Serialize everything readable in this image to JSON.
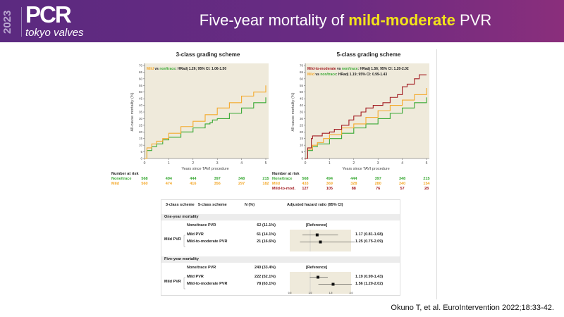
{
  "header": {
    "logo_year": "2023",
    "logo_main": "PCR",
    "logo_sub": "tokyo valves",
    "title_pre": "Five-year mortality of ",
    "title_highlight": "mild-moderate",
    "title_post": " PVR",
    "brand_color": "#5b2a80",
    "highlight_color": "#f3e31a"
  },
  "colors": {
    "none_trace": "#3aa935",
    "mild": "#f4a92c",
    "mild_to_mod": "#a31c22",
    "plot_bg": "#efeadb"
  },
  "chart_data": [
    {
      "type": "line",
      "title": "3-class grading scheme",
      "xlabel": "Years since TAVI procedure",
      "ylabel": "All-cause mortality (%)",
      "xlim": [
        0,
        5
      ],
      "ylim": [
        0,
        70
      ],
      "xticks": [
        0,
        1,
        2,
        3,
        4,
        5
      ],
      "yticks": [
        0,
        5,
        10,
        15,
        20,
        25,
        30,
        35,
        40,
        45,
        50,
        55,
        60,
        65,
        70
      ],
      "annotation": {
        "a": "Mild",
        "vs": " vs ",
        "b": "non/trace",
        "hr": ": HRadj 1.26; 95% CI: 1.06-1.50"
      },
      "series": [
        {
          "name": "None/trace",
          "color": "#3aa935",
          "x": [
            0,
            0.1,
            0.3,
            0.5,
            0.75,
            1,
            1.5,
            2,
            2.5,
            2.7,
            2.8,
            3,
            3.5,
            4,
            4.5,
            5
          ],
          "y": [
            0,
            6,
            9,
            11,
            14,
            16,
            20,
            23,
            26,
            27,
            29,
            30,
            34,
            38,
            42,
            46
          ]
        },
        {
          "name": "Mild",
          "color": "#f4a92c",
          "x": [
            0,
            0.1,
            0.3,
            0.5,
            0.75,
            1,
            1.5,
            2,
            2.5,
            3,
            3.5,
            4,
            4.5,
            5
          ],
          "y": [
            0,
            8,
            11,
            13,
            15,
            19,
            24,
            28,
            33,
            38,
            42,
            47,
            50,
            55
          ]
        }
      ],
      "risk_table": {
        "label": "Number at risk",
        "rows": [
          {
            "name": "None/trace",
            "values": [
              568,
              494,
              444,
              397,
              348,
              215
            ]
          },
          {
            "name": "Mild",
            "values": [
              560,
              474,
              416,
              356,
              297,
              182
            ]
          }
        ]
      }
    },
    {
      "type": "line",
      "title": "5-class grading scheme",
      "xlabel": "Years since TAVI procedure",
      "ylabel": "All-cause mortality (%)",
      "xlim": [
        0,
        5
      ],
      "ylim": [
        0,
        70
      ],
      "xticks": [
        0,
        1,
        2,
        3,
        4,
        5
      ],
      "yticks": [
        0,
        5,
        10,
        15,
        20,
        25,
        30,
        35,
        40,
        45,
        50,
        55,
        60,
        65,
        70
      ],
      "annotations": [
        {
          "a": "Mild-to-moderate",
          "vs": " vs ",
          "b": "non/trace",
          "hr": ": HRadj 1.56; 95% CI: 1.20-2.02"
        },
        {
          "a": "Mild",
          "vs": " vs ",
          "b": "non/trace",
          "hr": ": HRadj 1.19; 95% CI: 0.99-1.43"
        }
      ],
      "series": [
        {
          "name": "None/trace",
          "color": "#3aa935",
          "x": [
            0,
            0.1,
            0.3,
            0.5,
            1,
            1.5,
            2,
            2.5,
            3,
            3.5,
            4,
            4.5,
            5
          ],
          "y": [
            0,
            6,
            9,
            11,
            15,
            19,
            23,
            26,
            30,
            34,
            38,
            42,
            46
          ]
        },
        {
          "name": "Mild",
          "color": "#f4a92c",
          "x": [
            0,
            0.1,
            0.3,
            0.5,
            0.75,
            1,
            1.5,
            2,
            2.5,
            3,
            3.5,
            4,
            4.5,
            5
          ],
          "y": [
            0,
            7,
            10,
            12,
            15,
            18,
            23,
            26,
            31,
            36,
            40,
            44,
            48,
            53
          ]
        },
        {
          "name": "Mild-to-mod.",
          "color": "#a31c22",
          "x": [
            0,
            0.1,
            0.25,
            0.3,
            0.6,
            0.7,
            1,
            1.2,
            1.5,
            1.8,
            2,
            2.3,
            2.5,
            2.8,
            3,
            3.2,
            3.5,
            3.8,
            4,
            4.2,
            4.5,
            4.7,
            5
          ],
          "y": [
            0,
            8,
            15,
            17,
            17,
            19,
            20,
            22,
            25,
            29,
            32,
            35,
            38,
            40,
            40,
            42,
            46,
            48,
            54,
            56,
            60,
            63,
            63
          ]
        }
      ],
      "risk_table": {
        "label": "Number at risk",
        "rows": [
          {
            "name": "None/trace",
            "values": [
              568,
              494,
              444,
              397,
              348,
              215
            ]
          },
          {
            "name": "Mild",
            "values": [
              433,
              369,
              328,
              280,
              240,
              154
            ]
          },
          {
            "name": "Mild-to-mod.",
            "values": [
              127,
              105,
              88,
              76,
              57,
              28
            ]
          }
        ]
      }
    },
    {
      "type": "forest",
      "xlim": [
        0.5,
        2.0
      ],
      "xticks": [
        "0.5",
        "1.0",
        "1.5",
        "2.0"
      ],
      "reference": 1.0,
      "headers": [
        "3-class scheme",
        "5-class scheme",
        "N (%)",
        "Adjusted hazard ratio (95% CI)"
      ],
      "groups": [
        {
          "title": "One-year mortality",
          "group_label": "Mild PVR",
          "rows": [
            {
              "label": "None/trace PVR",
              "n": "62 (11.1%)",
              "hr_text": "[Reference]"
            },
            {
              "label": "Mild PVR",
              "n": "61 (14.1%)",
              "hr": 1.17,
              "lo": 0.81,
              "hi": 1.68,
              "hr_text": "1.17 (0.81-1.68)"
            },
            {
              "label": "Mild-to-moderate PVR",
              "n": "21 (16.6%)",
              "hr": 1.25,
              "lo": 0.75,
              "hi": 2.09,
              "hr_text": "1.25 (0.75-2.09)"
            }
          ]
        },
        {
          "title": "Five-year mortality",
          "group_label": "Mild PVR",
          "rows": [
            {
              "label": "None/trace PVR",
              "n": "240 (33.4%)",
              "hr_text": "[Reference]"
            },
            {
              "label": "Mild PVR",
              "n": "222 (52.1%)",
              "hr": 1.19,
              "lo": 0.99,
              "hi": 1.43,
              "hr_text": "1.19 (0.99-1.43)"
            },
            {
              "label": "Mild-to-moderate PVR",
              "n": "78 (63.1%)",
              "hr": 1.56,
              "lo": 1.2,
              "hi": 2.02,
              "hr_text": "1.56 (1.20-2.02)"
            }
          ]
        }
      ]
    }
  ],
  "citation": "Okuno T, et al. EuroIntervention 2022;18:33-42."
}
